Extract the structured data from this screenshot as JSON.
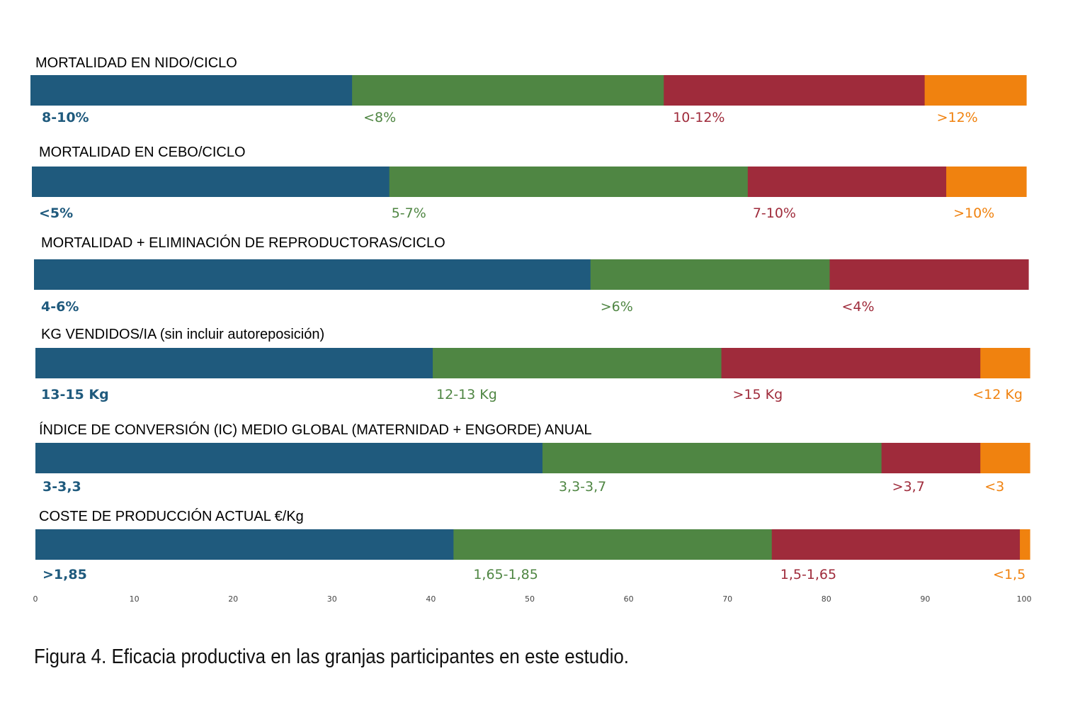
{
  "chart_data": {
    "type": "bar",
    "stacked": true,
    "orientation": "horizontal",
    "xlim": [
      0,
      100
    ],
    "x_ticks": [
      0,
      10,
      20,
      30,
      40,
      50,
      60,
      70,
      80,
      90,
      100
    ],
    "grid": false,
    "colors": [
      "#1f5a7d",
      "#4f8643",
      "#9f2b3b",
      "#f0820f"
    ],
    "rows": [
      {
        "title": "MORTALIDAD EN NIDO/CICLO",
        "segments": [
          {
            "label": "8-10%",
            "value": 32.3
          },
          {
            "label": "<8%",
            "value": 31.3
          },
          {
            "label": "10-12%",
            "value": 26.2
          },
          {
            "label": ">12%",
            "value": 10.2
          }
        ]
      },
      {
        "title": "MORTALIDAD EN CEBO/CICLO",
        "segments": [
          {
            "label": "<5%",
            "value": 36.2
          },
          {
            "label": "5-7%",
            "value": 36.3
          },
          {
            "label": "7-10%",
            "value": 20.1
          },
          {
            "label": ">10%",
            "value": 8.1
          }
        ]
      },
      {
        "title": "MORTALIDAD + ELIMINACIÓN DE REPRODUCTORAS/CICLO",
        "segments": [
          {
            "label": "4-6%",
            "value": 56.3
          },
          {
            "label": ">6%",
            "value": 24.2
          },
          {
            "label": "<4%",
            "value": 20.1
          }
        ]
      },
      {
        "title": "KG VENDIDOS/IA (sin incluir autoreposición)",
        "segments": [
          {
            "label": "13-15 Kg",
            "value": 40.2
          },
          {
            "label": "12-13 Kg",
            "value": 29.2
          },
          {
            "label": ">15 Kg",
            "value": 26.2
          },
          {
            "label": "<12 Kg",
            "value": 5.0
          }
        ]
      },
      {
        "title": "ÍNDICE DE CONVERSIÓN (IC) MEDIO GLOBAL (MATERNIDAD + ENGORDE) ANUAL",
        "segments": [
          {
            "label": "3-3,3",
            "value": 51.3
          },
          {
            "label": "3,3-3,7",
            "value": 34.3
          },
          {
            "label": ">3,7",
            "value": 10.0
          },
          {
            "label": "<3",
            "value": 5.0
          }
        ]
      },
      {
        "title": "COSTE DE PRODUCCIÓN ACTUAL €/Kg",
        "segments": [
          {
            "label": ">1,85",
            "value": 42.3
          },
          {
            "label": "1,65-1,85",
            "value": 32.2
          },
          {
            "label": "1,5-1,65",
            "value": 25.1
          },
          {
            "label": "<1,5",
            "value": 1.0
          }
        ]
      }
    ]
  },
  "caption": "Figura 4. Eficacia productiva en las granjas participantes en este estudio."
}
